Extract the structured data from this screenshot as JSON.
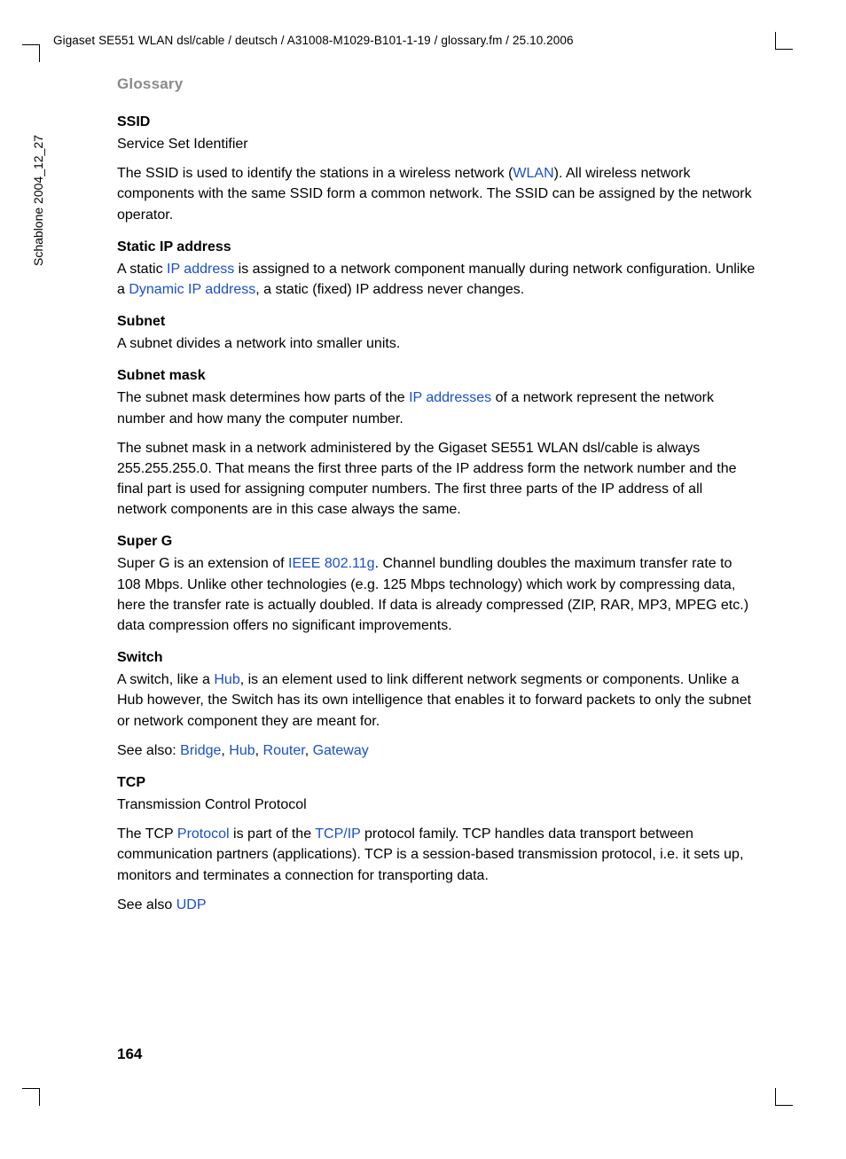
{
  "header": "Gigaset SE551 WLAN dsl/cable / deutsch / A31008-M1029-B101-1-19 / glossary.fm / 25.10.2006",
  "side_label": "Schablone 2004_12_27",
  "section_title": "Glossary",
  "page_number": "164",
  "link_color": "#1a4fc9",
  "muted_color": "#8a8a8a",
  "entries": {
    "ssid": {
      "term": "SSID",
      "sub": "Service Set Identifier",
      "p1a": "The SSID is used to identify the stations in a wireless network (",
      "link1": "WLAN",
      "p1b": "). All wireless network components with the same SSID form a common network. The SSID can be assigned by the network operator."
    },
    "static_ip": {
      "term": "Static IP address",
      "p1a": "A static ",
      "link1": "IP address",
      "p1b": " is assigned to a network component manually during network configuration. Unlike a ",
      "link2": "Dynamic IP address",
      "p1c": ", a static (fixed) IP address never changes."
    },
    "subnet": {
      "term": "Subnet",
      "p1": "A subnet divides a network into smaller units."
    },
    "subnet_mask": {
      "term": "Subnet mask",
      "p1a": "The subnet mask determines how parts of the ",
      "link1": "IP addresses",
      "p1b": " of a network represent the network number and how many the computer number.",
      "p2": "The subnet mask in a network administered by the Gigaset SE551 WLAN dsl/cable is always 255.255.255.0. That means the first three parts of the IP address form the network number and the final part is used for assigning computer numbers. The first three parts of the IP address of all network components are in this case always the same."
    },
    "super_g": {
      "term": "Super G",
      "p1a": "Super G is an extension of ",
      "link1": "IEEE 802.11g",
      "p1b": ". Channel bundling doubles the maximum transfer rate to 108 Mbps. Unlike other technologies (e.g. 125 Mbps technology) which work by compressing data, here the transfer rate is actually doubled. If data is already compressed (ZIP, RAR, MP3, MPEG etc.) data compression offers no significant improvements."
    },
    "switch": {
      "term": "Switch",
      "p1a": "A switch, like a ",
      "link1": "Hub",
      "p1b": ", is an element used to link different network segments or components. Unlike a Hub however, the Switch has its own intelligence that enables it to forward packets to only the subnet or network component they are meant for.",
      "see_label": "See also: ",
      "see1": "Bridge",
      "see2": "Hub",
      "see3": "Router",
      "see4": "Gateway"
    },
    "tcp": {
      "term": "TCP",
      "sub": "Transmission Control Protocol",
      "p1a": "The TCP ",
      "link1": "Protocol",
      "p1b": " is part of the ",
      "link2": "TCP/IP",
      "p1c": " protocol family. TCP handles data transport between communication partners (applications). TCP is a session-based transmission protocol, i.e. it sets up, monitors and terminates a connection for transporting data.",
      "see_label": "See also ",
      "see1": "UDP"
    }
  }
}
